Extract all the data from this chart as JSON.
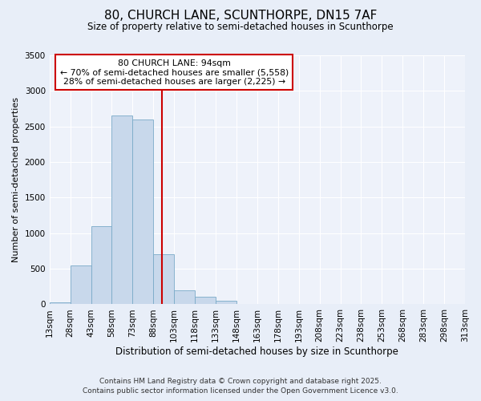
{
  "title": "80, CHURCH LANE, SCUNTHORPE, DN15 7AF",
  "subtitle": "Size of property relative to semi-detached houses in Scunthorpe",
  "xlabel": "Distribution of semi-detached houses by size in Scunthorpe",
  "ylabel": "Number of semi-detached properties",
  "bin_labels": [
    "13sqm",
    "28sqm",
    "43sqm",
    "58sqm",
    "73sqm",
    "88sqm",
    "103sqm",
    "118sqm",
    "133sqm",
    "148sqm",
    "163sqm",
    "178sqm",
    "193sqm",
    "208sqm",
    "223sqm",
    "238sqm",
    "253sqm",
    "268sqm",
    "283sqm",
    "298sqm",
    "313sqm"
  ],
  "bin_starts": [
    13,
    28,
    43,
    58,
    73,
    88,
    103,
    118,
    133,
    148,
    163,
    178,
    193,
    208,
    223,
    238,
    253,
    268,
    283,
    298
  ],
  "bin_width": 15,
  "bar_heights": [
    30,
    550,
    1100,
    2650,
    2600,
    700,
    200,
    110,
    50,
    5,
    0,
    0,
    0,
    0,
    0,
    0,
    0,
    0,
    0,
    0
  ],
  "bar_color": "#c8d8eb",
  "bar_edgecolor": "#7aaac8",
  "property_value": 94,
  "vline_color": "#cc0000",
  "ylim": [
    0,
    3500
  ],
  "xlim": [
    13,
    313
  ],
  "yticks": [
    0,
    500,
    1000,
    1500,
    2000,
    2500,
    3000,
    3500
  ],
  "xtick_positions": [
    13,
    28,
    43,
    58,
    73,
    88,
    103,
    118,
    133,
    148,
    163,
    178,
    193,
    208,
    223,
    238,
    253,
    268,
    283,
    298,
    313
  ],
  "annotation_line1": "80 CHURCH LANE: 94sqm",
  "annotation_line2": "← 70% of semi-detached houses are smaller (5,558)",
  "annotation_line3": "28% of semi-detached houses are larger (2,225) →",
  "annotation_box_edgecolor": "#cc0000",
  "footer_line1": "Contains HM Land Registry data © Crown copyright and database right 2025.",
  "footer_line2": "Contains public sector information licensed under the Open Government Licence v3.0.",
  "fig_bg_color": "#e8eef8",
  "plot_bg_color": "#eef2fa",
  "grid_color": "#ffffff",
  "title_fontsize": 11,
  "subtitle_fontsize": 8.5,
  "ylabel_fontsize": 8,
  "xlabel_fontsize": 8.5,
  "tick_fontsize": 7.5,
  "footer_fontsize": 6.5
}
